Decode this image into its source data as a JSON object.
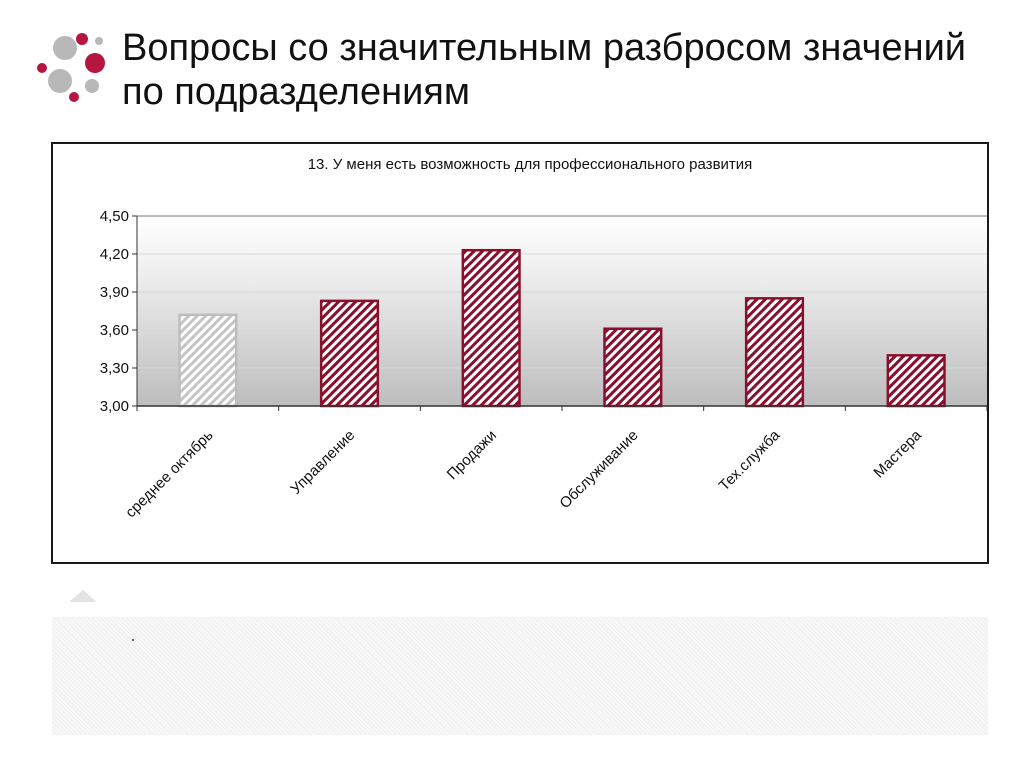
{
  "slide": {
    "title": "Вопросы со значительным разбросом значений по подразделениям"
  },
  "colors": {
    "logo_primary": "#b5153f",
    "logo_secondary": "#b8b8b8",
    "bar_highlight": "#8a0f2c",
    "bar_baseline": "#bdbdbd",
    "axis": "#333333"
  },
  "chart_data": {
    "type": "bar",
    "title": "13. У меня есть возможность для профессионального развития",
    "categories": [
      "среднее октябрь",
      "Управление",
      "Продажи",
      "Обслуживание",
      "Тех.служба",
      "Мастера"
    ],
    "series": [
      {
        "values": [
          3.72,
          3.83,
          4.23,
          3.61,
          3.85,
          3.4
        ]
      }
    ],
    "baseline_category_index": 0,
    "ylim": [
      3.0,
      4.5
    ],
    "yticks": [
      "3,00",
      "3,30",
      "3,60",
      "3,90",
      "4,20",
      "4,50"
    ],
    "ytick_values": [
      3.0,
      3.3,
      3.6,
      3.9,
      4.2,
      4.5
    ],
    "xlabel": "",
    "ylabel": "",
    "grid": true,
    "legend": "none",
    "bar_style": "diagonal-hatched"
  }
}
